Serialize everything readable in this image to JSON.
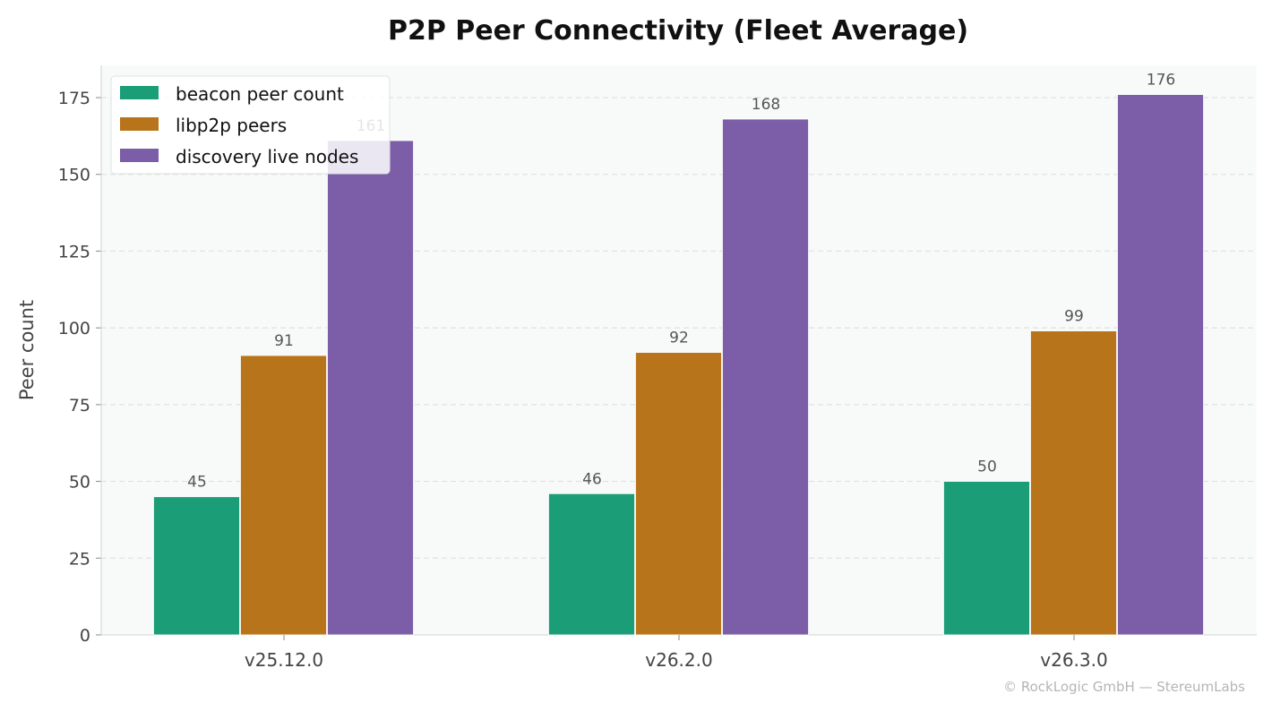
{
  "chart_data": {
    "type": "bar",
    "title": "P2P Peer Connectivity (Fleet Average)",
    "xlabel": "",
    "ylabel": "Peer count",
    "categories": [
      "v25.12.0",
      "v26.2.0",
      "v26.3.0"
    ],
    "series": [
      {
        "name": "beacon peer count",
        "values": [
          45,
          46,
          50
        ],
        "color": "#1b9e77"
      },
      {
        "name": "libp2p peers",
        "values": [
          91,
          92,
          99
        ],
        "color": "#b8741a"
      },
      {
        "name": "discovery live nodes",
        "values": [
          161,
          168,
          176
        ],
        "color": "#7b5ea7"
      }
    ],
    "data_labels": [
      [
        "45",
        "46",
        "50"
      ],
      [
        "91",
        "92",
        "99"
      ],
      [
        "161",
        "168",
        "176"
      ]
    ],
    "ylim": [
      0,
      185.5
    ],
    "yticks": [
      0,
      25,
      50,
      75,
      100,
      125,
      150,
      175
    ],
    "grid": "horizontal dashed",
    "legend": "top-left",
    "footer": "© RockLogic GmbH — StereumLabs",
    "plot_background": "#f8faf9"
  }
}
